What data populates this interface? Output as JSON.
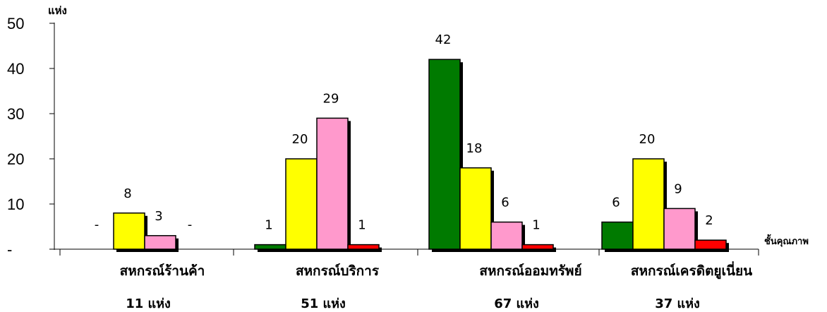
{
  "chart_data": {
    "type": "bar",
    "y_unit_label": "แห่ง",
    "x_unit_label": "ชั้นคุณภาพ",
    "ylim": [
      0,
      50
    ],
    "yticks": [
      "-",
      "10",
      "20",
      "30",
      "40",
      "50"
    ],
    "grid": false,
    "categories": [
      "สหกรณ์ร้านค้า",
      "สหกรณ์บริการ",
      "สหกรณ์ออมทรัพย์",
      "สหกรณ์เครดิตยูเนี่ยน"
    ],
    "category_totals": [
      "11  แห่ง",
      "51  แห่ง",
      "67  แห่ง",
      "37  แห่ง"
    ],
    "series": [
      {
        "color": "#007a00",
        "values": [
          0,
          1,
          42,
          6
        ],
        "labels": [
          "-",
          "1",
          "42",
          "6"
        ]
      },
      {
        "color": "#ffff00",
        "values": [
          8,
          20,
          18,
          20
        ],
        "labels": [
          "8",
          "20",
          "18",
          "20"
        ]
      },
      {
        "color": "#ff99cc",
        "values": [
          3,
          29,
          6,
          9
        ],
        "labels": [
          "3",
          "29",
          "6",
          "9"
        ]
      },
      {
        "color": "#ff0000",
        "values": [
          0,
          1,
          1,
          2
        ],
        "labels": [
          "-",
          "1",
          "1",
          "2"
        ]
      }
    ]
  }
}
